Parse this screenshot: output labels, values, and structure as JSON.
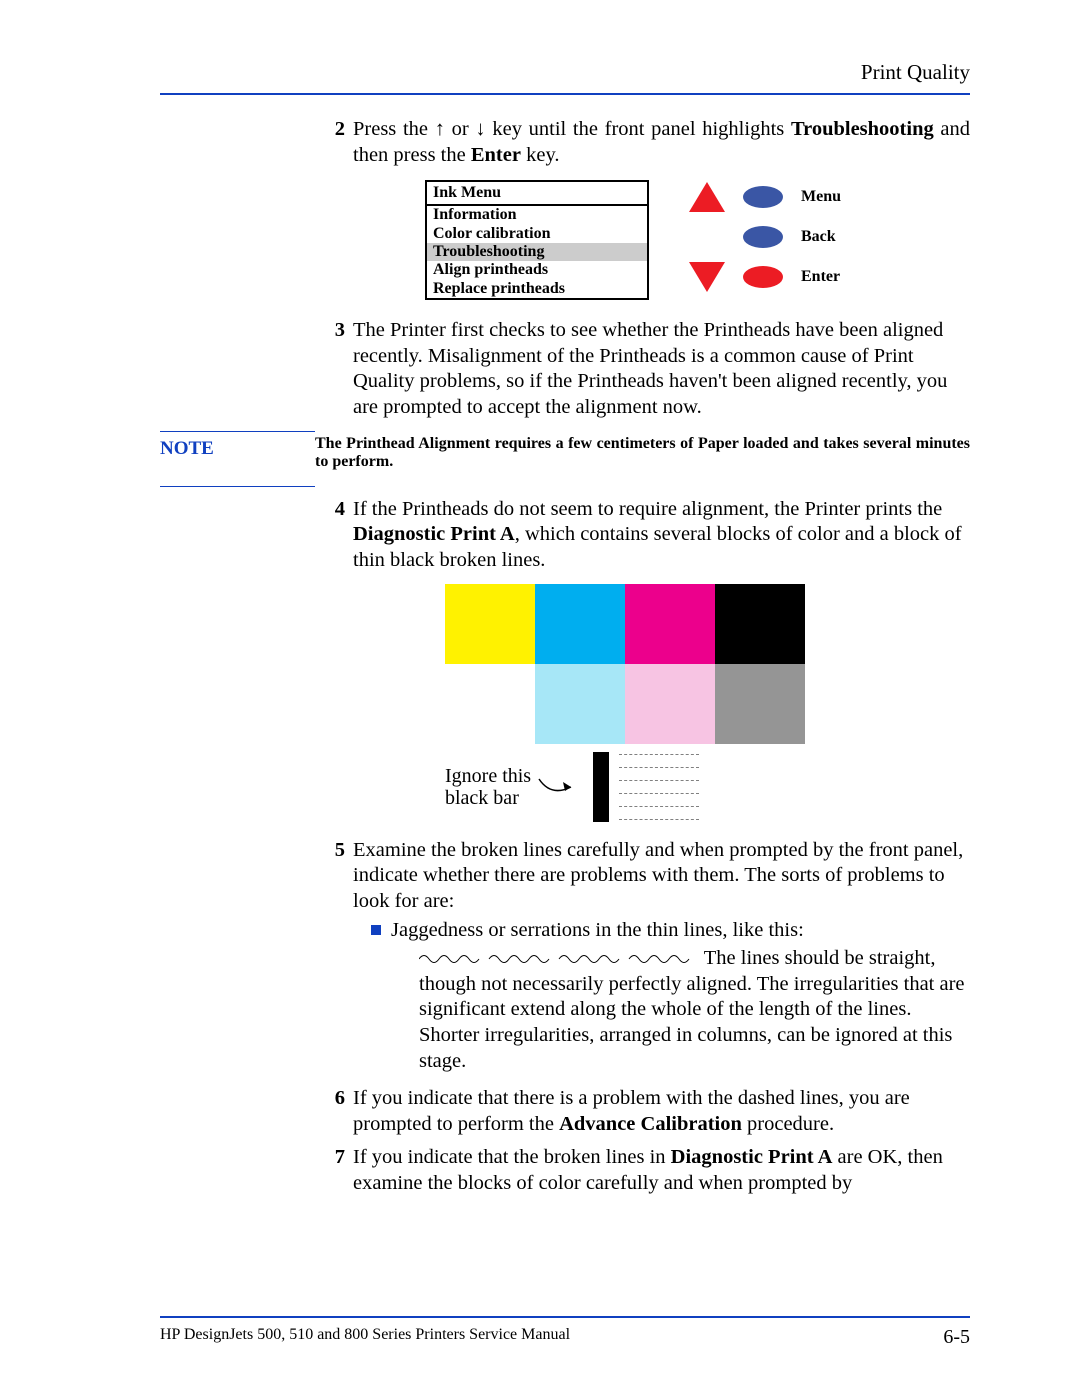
{
  "header": {
    "title": "Print Quality"
  },
  "step2": {
    "num": "2",
    "text_a": "Press the ",
    "text_b": " or ",
    "text_c": " key until the front panel highlights ",
    "bold1": "Troubleshooting",
    "text_d": " and then press the ",
    "bold2": "Enter",
    "text_e": " key."
  },
  "ink_menu": {
    "title": "Ink Menu",
    "items": [
      "Information",
      "Color calibration",
      "Troubleshooting",
      "Align printheads",
      "Replace printheads"
    ],
    "highlighted_index": 2,
    "buttons": {
      "menu": "Menu",
      "back": "Back",
      "enter": "Enter"
    },
    "colors": {
      "triangle": "#ec1c24",
      "ellipse_blue": "#3a56a5",
      "ellipse_red": "#ec1c24",
      "highlight_bg": "#cccccc"
    }
  },
  "step3": {
    "num": "3",
    "text": "The Printer first checks to see whether the Printheads have been aligned recently. Misalignment of the Printheads is a common cause of Print Quality problems, so if the Printheads haven't been aligned recently, you are prompted to accept the alignment now."
  },
  "note": {
    "label": "NOTE",
    "text": "The Printhead Alignment requires a few centimeters of Paper loaded and takes several minutes to perform."
  },
  "step4": {
    "num": "4",
    "text_a": "If the Printheads do not seem to require alignment, the Printer prints the ",
    "bold1": "Diagnostic Print A",
    "text_b": ", which contains several blocks of color and a block of thin black broken lines."
  },
  "diag": {
    "row1_colors": [
      "#fff200",
      "#00aeef",
      "#ec008c",
      "#000000"
    ],
    "row2_colors": [
      "#ffffff",
      "#a7e7f7",
      "#f7c4e3",
      "#959595"
    ],
    "ignore_label": "Ignore this\nblack bar",
    "dash_rows": 6,
    "dash_color": "#808080"
  },
  "step5": {
    "num": "5",
    "text": "Examine the broken lines carefully and when prompted by the front panel, indicate whether there are problems with them. The sorts of problems to look for are:",
    "bullet_a": "Jaggedness or serrations in the thin lines, like this:",
    "bullet_b": "The lines should be straight, though not necessarily perfectly aligned. The irregularities that are significant extend along the whole of the length of the lines. Shorter irregularities, arranged in columns, can be ignored at this stage."
  },
  "step6": {
    "num": "6",
    "text_a": "If you indicate that there is a problem with the dashed lines, you are prompted to perform the ",
    "bold1": "Advance Calibration",
    "text_b": " procedure."
  },
  "step7": {
    "num": "7",
    "text_a": "If you indicate that the broken lines in ",
    "bold1": "Diagnostic Print A",
    "text_b": " are OK, then examine the blocks of color carefully and when prompted by"
  },
  "footer": {
    "manual": "HP DesignJets 500, 510 and 800 Series Printers Service Manual",
    "page": "6-5"
  },
  "colors": {
    "rule": "#1040c0",
    "note_label": "#1040c0",
    "bullet_square": "#1040c0"
  }
}
